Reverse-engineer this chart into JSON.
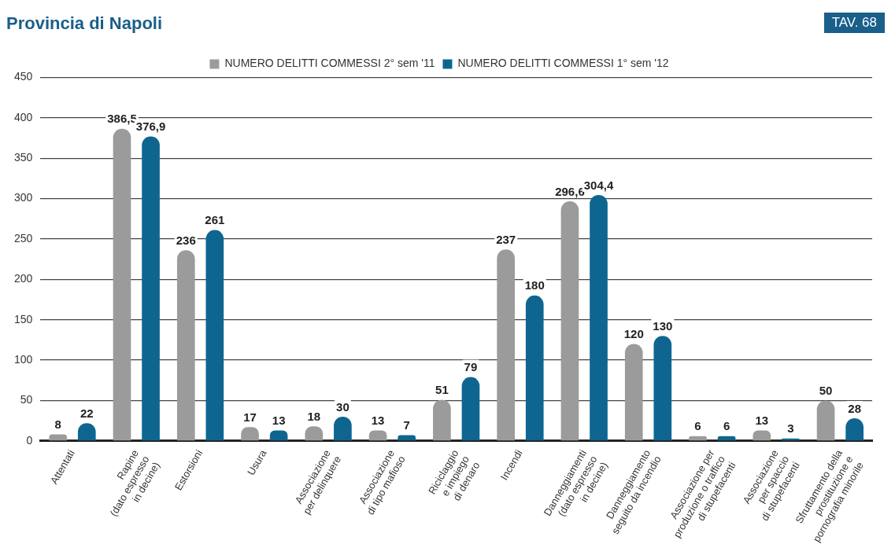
{
  "chart_data": {
    "type": "bar",
    "title": "Provincia di Napoli",
    "annotations": [
      "TAV. 68"
    ],
    "categories": [
      "Attentati",
      "Rapine\n(dato espresso\nin decine)",
      "Estorsioni",
      "Usura",
      "Associazione\nper delinquere",
      "Associazione\ndi tipo mafioso",
      "Riciclaggio\ne impiego\ndi denaro",
      "Incendi",
      "Danneggiamenti\n(dato espresso\nin decine)",
      "Danneggiamento\nseguito da incendio",
      "Associazione per\nproduzione o traffico\ndi stupefacenti",
      "Associazione\nper spaccio\ndi stupefacenti",
      "Sfruttamento della\nprostituzione e\npornografia minorile"
    ],
    "series": [
      {
        "name": "NUMERO DELITTI COMMESSI 2° sem '11",
        "color": "#9b9b9b",
        "values": [
          8,
          386.5,
          236,
          17,
          18,
          13,
          51,
          237,
          296.6,
          120,
          6,
          13,
          50
        ],
        "value_labels": [
          "8",
          "386,5",
          "236",
          "17",
          "18",
          "13",
          "51",
          "237",
          "296,6",
          "120",
          "6",
          "13",
          "50"
        ]
      },
      {
        "name": "NUMERO DELITTI COMMESSI 1° sem '12",
        "color": "#0e6690",
        "values": [
          22,
          376.9,
          261,
          13,
          30,
          7,
          79,
          180,
          304.4,
          130,
          6,
          3,
          28
        ],
        "value_labels": [
          "22",
          "376,9",
          "261",
          "13",
          "30",
          "7",
          "79",
          "180",
          "304,4",
          "130",
          "6",
          "3",
          "28"
        ]
      }
    ],
    "ylim": [
      0,
      450
    ],
    "yticks": [
      0,
      50,
      100,
      150,
      200,
      250,
      300,
      350,
      400,
      450
    ],
    "grid": "y",
    "legend": "top"
  }
}
